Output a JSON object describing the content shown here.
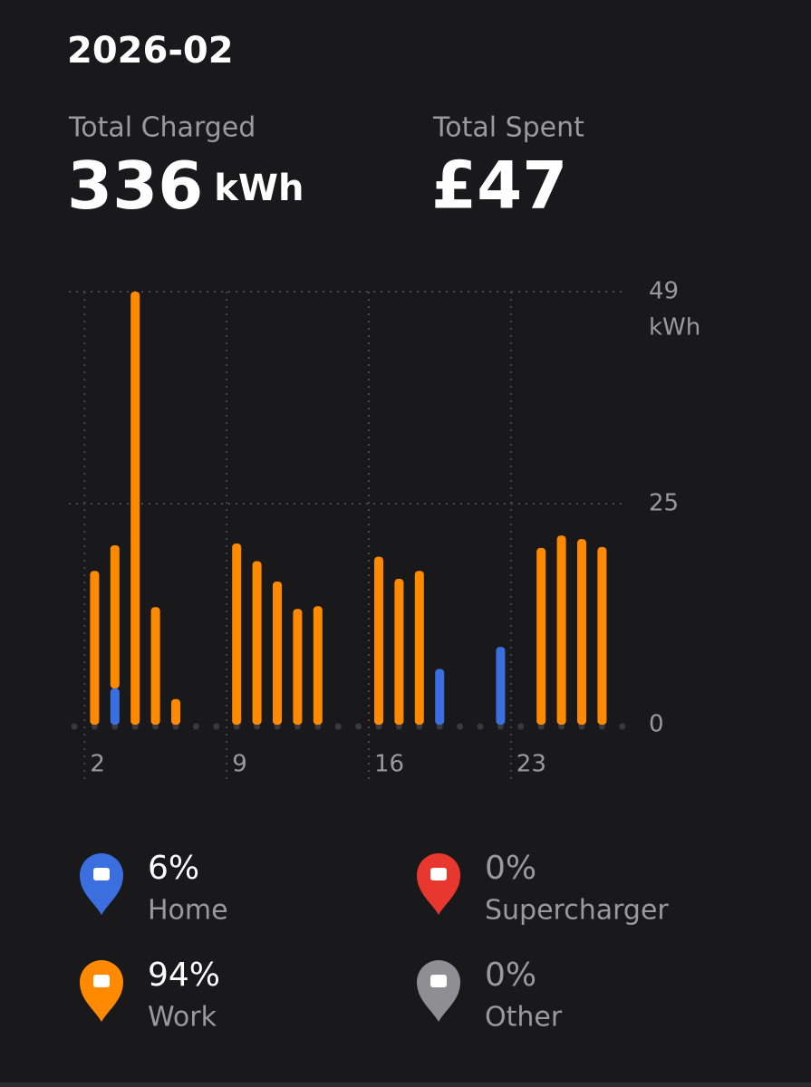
{
  "header": {
    "period": "2026-02",
    "total_charged_label": "Total Charged",
    "total_charged_value": "336",
    "total_charged_unit": "kWh",
    "total_spent_label": "Total Spent",
    "total_spent_value": "£47"
  },
  "chart_data": {
    "type": "bar",
    "stacked": true,
    "y_unit": "kWh",
    "categories": [
      null,
      "2",
      null,
      null,
      null,
      null,
      null,
      null,
      "9",
      null,
      null,
      null,
      null,
      null,
      null,
      "16",
      null,
      null,
      null,
      null,
      null,
      null,
      "23",
      null,
      null,
      null,
      null,
      null
    ],
    "series": [
      {
        "name": "Home",
        "share": "6%",
        "color": "#3b6fe0",
        "values": [
          0,
          0,
          4.1,
          0,
          0,
          0,
          0,
          0,
          0,
          0,
          0,
          0,
          0,
          0,
          0,
          0,
          0,
          0,
          6.3,
          0,
          0,
          8.8,
          0,
          0,
          0,
          0,
          0,
          0
        ]
      },
      {
        "name": "Work",
        "share": "94%",
        "color": "#ff8a00",
        "values": [
          0,
          17.4,
          16.2,
          49,
          13.3,
          2.9,
          0,
          0,
          20.5,
          18.5,
          16.2,
          13.1,
          13.4,
          0,
          0,
          19,
          16.5,
          17.4,
          0,
          0,
          0,
          0,
          0,
          20,
          21.4,
          21,
          20.1,
          0
        ]
      },
      {
        "name": "Supercharger",
        "share": "0%",
        "color": "#e8372f",
        "values": [
          0,
          0,
          0,
          0,
          0,
          0,
          0,
          0,
          0,
          0,
          0,
          0,
          0,
          0,
          0,
          0,
          0,
          0,
          0,
          0,
          0,
          0,
          0,
          0,
          0,
          0,
          0,
          0
        ]
      },
      {
        "name": "Other",
        "share": "0%",
        "color": "#8e8e93",
        "values": [
          0,
          0,
          0,
          0,
          0,
          0,
          0,
          0,
          0,
          0,
          0,
          0,
          0,
          0,
          0,
          0,
          0,
          0,
          0,
          0,
          0,
          0,
          0,
          0,
          0,
          0,
          0,
          0
        ]
      }
    ],
    "ylim": [
      0,
      49
    ],
    "yticks": [
      0,
      25,
      49
    ],
    "grid": true
  }
}
